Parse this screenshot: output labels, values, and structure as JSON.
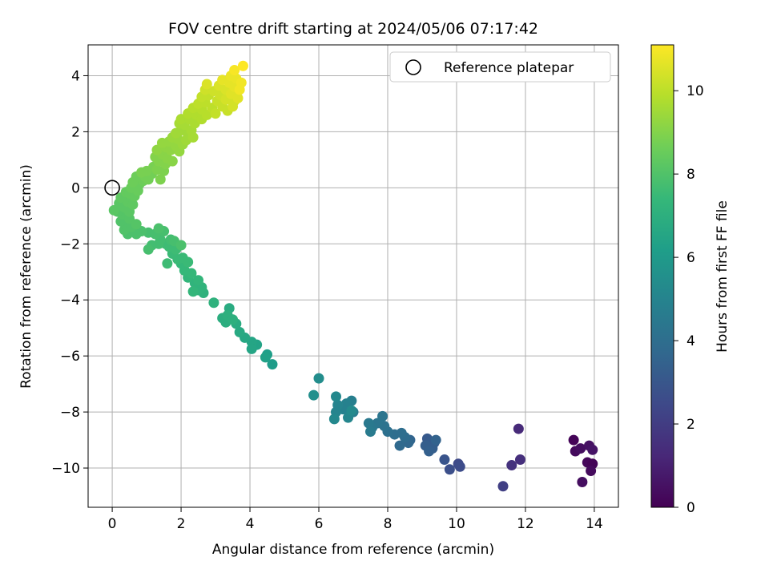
{
  "chart_data": {
    "type": "scatter",
    "title": "FOV centre drift starting at 2024/05/06 07:17:42",
    "xlabel": "Angular distance from reference (arcmin)",
    "ylabel": "Rotation from reference (arcmin)",
    "xlim": [
      -0.7,
      14.7
    ],
    "ylim": [
      -11.4,
      5.1
    ],
    "xticks": [
      0,
      2,
      4,
      6,
      8,
      10,
      12,
      14
    ],
    "yticks": [
      -10,
      -8,
      -6,
      -4,
      -2,
      0,
      2,
      4
    ],
    "xtick_labels": [
      "0",
      "2",
      "4",
      "6",
      "8",
      "10",
      "12",
      "14"
    ],
    "ytick_labels": [
      "−10",
      "−8",
      "−6",
      "−4",
      "−2",
      "0",
      "2",
      "4"
    ],
    "grid": true,
    "legend": {
      "placement": "upper right",
      "label": "Reference platepar",
      "marker": "open circle"
    },
    "reference_point": {
      "x": 0,
      "y": 0
    },
    "colorbar": {
      "label": "Hours from first FF file",
      "colormap": "viridis",
      "range": [
        0,
        11.1
      ],
      "ticks": [
        0,
        2,
        4,
        6,
        8,
        10
      ],
      "tick_labels": [
        "0",
        "2",
        "4",
        "6",
        "8",
        "10"
      ]
    },
    "colormap_stops": [
      "#440154",
      "#482878",
      "#3e4989",
      "#31688e",
      "#26828e",
      "#1f9e89",
      "#35b779",
      "#6ece58",
      "#b5de2b",
      "#fde725"
    ],
    "points": [
      {
        "x": 13.4,
        "y": -9.0,
        "t": 0.1
      },
      {
        "x": 13.45,
        "y": -9.4,
        "t": 0.3
      },
      {
        "x": 13.6,
        "y": -9.3,
        "t": 0.4
      },
      {
        "x": 13.85,
        "y": -9.2,
        "t": 0.5
      },
      {
        "x": 13.95,
        "y": -9.35,
        "t": 0.6
      },
      {
        "x": 13.8,
        "y": -9.8,
        "t": 0.2
      },
      {
        "x": 13.95,
        "y": -9.85,
        "t": 0.1
      },
      {
        "x": 13.9,
        "y": -10.1,
        "t": 0.3
      },
      {
        "x": 13.65,
        "y": -10.5,
        "t": 0.4
      },
      {
        "x": 11.8,
        "y": -8.6,
        "t": 1.3
      },
      {
        "x": 11.85,
        "y": -9.7,
        "t": 1.5
      },
      {
        "x": 11.6,
        "y": -9.9,
        "t": 1.6
      },
      {
        "x": 11.35,
        "y": -10.65,
        "t": 2.1
      },
      {
        "x": 10.05,
        "y": -9.85,
        "t": 2.5
      },
      {
        "x": 10.1,
        "y": -9.95,
        "t": 2.6
      },
      {
        "x": 9.8,
        "y": -10.05,
        "t": 2.7
      },
      {
        "x": 9.65,
        "y": -9.7,
        "t": 2.9
      },
      {
        "x": 9.15,
        "y": -8.95,
        "t": 3.1
      },
      {
        "x": 9.25,
        "y": -9.05,
        "t": 3.2
      },
      {
        "x": 9.35,
        "y": -9.1,
        "t": 3.2
      },
      {
        "x": 9.1,
        "y": -9.2,
        "t": 3.3
      },
      {
        "x": 9.3,
        "y": -9.3,
        "t": 3.3
      },
      {
        "x": 9.2,
        "y": -9.4,
        "t": 3.4
      },
      {
        "x": 9.4,
        "y": -9.0,
        "t": 3.5
      },
      {
        "x": 8.65,
        "y": -9.0,
        "t": 3.6
      },
      {
        "x": 8.6,
        "y": -9.1,
        "t": 3.7
      },
      {
        "x": 8.35,
        "y": -9.2,
        "t": 3.8
      },
      {
        "x": 8.5,
        "y": -8.9,
        "t": 3.9
      },
      {
        "x": 8.4,
        "y": -8.75,
        "t": 4.0
      },
      {
        "x": 8.2,
        "y": -8.8,
        "t": 4.0
      },
      {
        "x": 8.0,
        "y": -8.7,
        "t": 4.1
      },
      {
        "x": 7.9,
        "y": -8.5,
        "t": 4.2
      },
      {
        "x": 7.85,
        "y": -8.15,
        "t": 4.3
      },
      {
        "x": 7.7,
        "y": -8.4,
        "t": 4.3
      },
      {
        "x": 7.55,
        "y": -8.55,
        "t": 4.4
      },
      {
        "x": 7.45,
        "y": -8.4,
        "t": 4.5
      },
      {
        "x": 7.5,
        "y": -8.7,
        "t": 4.6
      },
      {
        "x": 7.0,
        "y": -8.0,
        "t": 4.7
      },
      {
        "x": 6.95,
        "y": -7.6,
        "t": 4.8
      },
      {
        "x": 6.8,
        "y": -7.7,
        "t": 4.9
      },
      {
        "x": 6.7,
        "y": -7.9,
        "t": 4.9
      },
      {
        "x": 6.55,
        "y": -7.75,
        "t": 5.0
      },
      {
        "x": 6.5,
        "y": -8.0,
        "t": 5.0
      },
      {
        "x": 6.85,
        "y": -8.2,
        "t": 5.1
      },
      {
        "x": 6.5,
        "y": -7.45,
        "t": 5.2
      },
      {
        "x": 6.45,
        "y": -8.25,
        "t": 5.2
      },
      {
        "x": 6.95,
        "y": -7.95,
        "t": 5.3
      },
      {
        "x": 6.0,
        "y": -6.8,
        "t": 5.4
      },
      {
        "x": 5.85,
        "y": -7.4,
        "t": 5.5
      },
      {
        "x": 4.65,
        "y": -6.3,
        "t": 6.1
      },
      {
        "x": 4.5,
        "y": -5.95,
        "t": 6.2
      },
      {
        "x": 4.45,
        "y": -6.05,
        "t": 6.3
      },
      {
        "x": 4.2,
        "y": -5.6,
        "t": 6.4
      },
      {
        "x": 4.05,
        "y": -5.5,
        "t": 6.5
      },
      {
        "x": 4.05,
        "y": -5.75,
        "t": 6.5
      },
      {
        "x": 3.85,
        "y": -5.35,
        "t": 6.6
      },
      {
        "x": 3.7,
        "y": -5.15,
        "t": 6.7
      },
      {
        "x": 3.6,
        "y": -4.85,
        "t": 6.8
      },
      {
        "x": 3.4,
        "y": -4.3,
        "t": 6.8
      },
      {
        "x": 3.3,
        "y": -4.8,
        "t": 6.9
      },
      {
        "x": 3.2,
        "y": -4.65,
        "t": 6.9
      },
      {
        "x": 3.35,
        "y": -4.55,
        "t": 7.0
      },
      {
        "x": 3.5,
        "y": -4.7,
        "t": 7.0
      },
      {
        "x": 2.95,
        "y": -4.1,
        "t": 7.1
      },
      {
        "x": 2.65,
        "y": -3.75,
        "t": 7.1
      },
      {
        "x": 2.5,
        "y": -3.65,
        "t": 7.2
      },
      {
        "x": 2.6,
        "y": -3.55,
        "t": 7.2
      },
      {
        "x": 2.4,
        "y": -3.4,
        "t": 7.2
      },
      {
        "x": 2.35,
        "y": -3.7,
        "t": 7.3
      },
      {
        "x": 2.5,
        "y": -3.3,
        "t": 7.3
      },
      {
        "x": 2.2,
        "y": -3.2,
        "t": 7.3
      },
      {
        "x": 2.3,
        "y": -3.05,
        "t": 7.4
      },
      {
        "x": 2.1,
        "y": -2.95,
        "t": 7.4
      },
      {
        "x": 2.0,
        "y": -2.7,
        "t": 7.4
      },
      {
        "x": 2.2,
        "y": -2.65,
        "t": 7.5
      },
      {
        "x": 2.05,
        "y": -2.5,
        "t": 7.5
      },
      {
        "x": 1.9,
        "y": -2.55,
        "t": 7.5
      },
      {
        "x": 1.75,
        "y": -2.35,
        "t": 7.5
      },
      {
        "x": 1.6,
        "y": -2.7,
        "t": 7.6
      },
      {
        "x": 1.85,
        "y": -2.2,
        "t": 7.6
      },
      {
        "x": 1.65,
        "y": -2.1,
        "t": 7.6
      },
      {
        "x": 1.55,
        "y": -2.0,
        "t": 7.6
      },
      {
        "x": 1.4,
        "y": -1.85,
        "t": 7.7
      },
      {
        "x": 1.7,
        "y": -1.85,
        "t": 7.7
      },
      {
        "x": 1.35,
        "y": -2.0,
        "t": 7.7
      },
      {
        "x": 1.15,
        "y": -2.05,
        "t": 7.7
      },
      {
        "x": 1.05,
        "y": -2.2,
        "t": 7.8
      },
      {
        "x": 1.05,
        "y": -1.6,
        "t": 7.8
      },
      {
        "x": 1.25,
        "y": -1.65,
        "t": 7.8
      },
      {
        "x": 1.5,
        "y": -1.55,
        "t": 7.8
      },
      {
        "x": 1.8,
        "y": -1.9,
        "t": 7.8
      },
      {
        "x": 2.0,
        "y": -2.05,
        "t": 7.9
      },
      {
        "x": 1.35,
        "y": -1.45,
        "t": 7.9
      },
      {
        "x": 0.85,
        "y": -1.55,
        "t": 7.9
      },
      {
        "x": 0.7,
        "y": -1.65,
        "t": 7.9
      },
      {
        "x": 0.45,
        "y": -1.65,
        "t": 7.9
      },
      {
        "x": 0.35,
        "y": -1.5,
        "t": 8.0
      },
      {
        "x": 0.4,
        "y": -1.35,
        "t": 8.0
      },
      {
        "x": 0.25,
        "y": -1.2,
        "t": 8.0
      },
      {
        "x": 0.55,
        "y": -1.4,
        "t": 8.0
      },
      {
        "x": 0.3,
        "y": -0.95,
        "t": 8.1
      },
      {
        "x": 0.5,
        "y": -1.1,
        "t": 8.1
      },
      {
        "x": 0.7,
        "y": -1.3,
        "t": 8.1
      },
      {
        "x": 0.15,
        "y": -0.85,
        "t": 8.1
      },
      {
        "x": 0.05,
        "y": -0.8,
        "t": 8.2
      },
      {
        "x": 0.35,
        "y": -0.7,
        "t": 8.2
      },
      {
        "x": 0.2,
        "y": -0.55,
        "t": 8.2
      },
      {
        "x": 0.5,
        "y": -0.85,
        "t": 8.2
      },
      {
        "x": 0.45,
        "y": -0.5,
        "t": 8.3
      },
      {
        "x": 0.25,
        "y": -0.35,
        "t": 8.3
      },
      {
        "x": 0.6,
        "y": -0.6,
        "t": 8.3
      },
      {
        "x": 0.4,
        "y": -0.15,
        "t": 8.4
      },
      {
        "x": 0.5,
        "y": -0.2,
        "t": 8.4
      },
      {
        "x": 0.65,
        "y": -0.3,
        "t": 8.4
      },
      {
        "x": 0.55,
        "y": 0.0,
        "t": 8.5
      },
      {
        "x": 0.75,
        "y": -0.1,
        "t": 8.5
      },
      {
        "x": 0.8,
        "y": 0.15,
        "t": 8.5
      },
      {
        "x": 0.6,
        "y": 0.2,
        "t": 8.6
      },
      {
        "x": 0.9,
        "y": 0.25,
        "t": 8.6
      },
      {
        "x": 0.7,
        "y": 0.4,
        "t": 8.6
      },
      {
        "x": 0.95,
        "y": 0.4,
        "t": 8.7
      },
      {
        "x": 1.05,
        "y": 0.3,
        "t": 8.7
      },
      {
        "x": 1.15,
        "y": 0.5,
        "t": 8.7
      },
      {
        "x": 1.0,
        "y": 0.6,
        "t": 8.8
      },
      {
        "x": 0.85,
        "y": 0.55,
        "t": 8.8
      },
      {
        "x": 1.2,
        "y": 0.75,
        "t": 8.8
      },
      {
        "x": 1.3,
        "y": 0.65,
        "t": 8.9
      },
      {
        "x": 1.4,
        "y": 0.3,
        "t": 8.9
      },
      {
        "x": 1.5,
        "y": 0.6,
        "t": 8.9
      },
      {
        "x": 1.35,
        "y": 0.95,
        "t": 9.0
      },
      {
        "x": 1.55,
        "y": 0.85,
        "t": 9.0
      },
      {
        "x": 1.25,
        "y": 1.1,
        "t": 9.0
      },
      {
        "x": 1.45,
        "y": 1.2,
        "t": 9.1
      },
      {
        "x": 1.6,
        "y": 1.05,
        "t": 9.1
      },
      {
        "x": 1.75,
        "y": 0.95,
        "t": 9.1
      },
      {
        "x": 1.3,
        "y": 1.35,
        "t": 9.2
      },
      {
        "x": 1.55,
        "y": 1.45,
        "t": 9.2
      },
      {
        "x": 1.7,
        "y": 1.35,
        "t": 9.2
      },
      {
        "x": 1.45,
        "y": 1.6,
        "t": 9.3
      },
      {
        "x": 1.65,
        "y": 1.65,
        "t": 9.3
      },
      {
        "x": 1.85,
        "y": 1.5,
        "t": 9.3
      },
      {
        "x": 1.95,
        "y": 1.3,
        "t": 9.3
      },
      {
        "x": 1.75,
        "y": 1.8,
        "t": 9.4
      },
      {
        "x": 1.9,
        "y": 1.75,
        "t": 9.4
      },
      {
        "x": 2.05,
        "y": 1.55,
        "t": 9.4
      },
      {
        "x": 2.15,
        "y": 1.7,
        "t": 9.5
      },
      {
        "x": 1.85,
        "y": 1.95,
        "t": 9.5
      },
      {
        "x": 2.0,
        "y": 2.05,
        "t": 9.5
      },
      {
        "x": 2.2,
        "y": 1.9,
        "t": 9.5
      },
      {
        "x": 1.95,
        "y": 2.3,
        "t": 9.6
      },
      {
        "x": 2.1,
        "y": 2.25,
        "t": 9.6
      },
      {
        "x": 2.3,
        "y": 2.05,
        "t": 9.6
      },
      {
        "x": 2.35,
        "y": 1.8,
        "t": 9.6
      },
      {
        "x": 2.0,
        "y": 2.45,
        "t": 9.7
      },
      {
        "x": 2.25,
        "y": 2.45,
        "t": 9.7
      },
      {
        "x": 2.4,
        "y": 2.3,
        "t": 9.7
      },
      {
        "x": 2.2,
        "y": 2.65,
        "t": 9.8
      },
      {
        "x": 2.45,
        "y": 2.6,
        "t": 9.8
      },
      {
        "x": 2.6,
        "y": 2.45,
        "t": 9.8
      },
      {
        "x": 2.35,
        "y": 2.85,
        "t": 9.9
      },
      {
        "x": 2.6,
        "y": 2.8,
        "t": 9.9
      },
      {
        "x": 2.75,
        "y": 2.6,
        "t": 9.9
      },
      {
        "x": 2.5,
        "y": 3.0,
        "t": 10.0
      },
      {
        "x": 2.7,
        "y": 3.05,
        "t": 10.0
      },
      {
        "x": 2.9,
        "y": 2.85,
        "t": 10.0
      },
      {
        "x": 3.0,
        "y": 2.65,
        "t": 10.1
      },
      {
        "x": 2.6,
        "y": 3.25,
        "t": 10.1
      },
      {
        "x": 2.8,
        "y": 3.3,
        "t": 10.1
      },
      {
        "x": 3.05,
        "y": 3.1,
        "t": 10.2
      },
      {
        "x": 3.2,
        "y": 2.9,
        "t": 10.2
      },
      {
        "x": 3.35,
        "y": 2.75,
        "t": 10.2
      },
      {
        "x": 2.7,
        "y": 3.5,
        "t": 10.3
      },
      {
        "x": 2.95,
        "y": 3.45,
        "t": 10.3
      },
      {
        "x": 3.15,
        "y": 3.3,
        "t": 10.3
      },
      {
        "x": 3.3,
        "y": 3.15,
        "t": 10.4
      },
      {
        "x": 3.5,
        "y": 2.9,
        "t": 10.4
      },
      {
        "x": 3.55,
        "y": 3.1,
        "t": 10.4
      },
      {
        "x": 2.75,
        "y": 3.7,
        "t": 10.5
      },
      {
        "x": 3.1,
        "y": 3.65,
        "t": 10.5
      },
      {
        "x": 3.3,
        "y": 3.5,
        "t": 10.5
      },
      {
        "x": 3.45,
        "y": 3.35,
        "t": 10.6
      },
      {
        "x": 3.65,
        "y": 3.2,
        "t": 10.6
      },
      {
        "x": 3.2,
        "y": 3.85,
        "t": 10.7
      },
      {
        "x": 3.4,
        "y": 3.75,
        "t": 10.7
      },
      {
        "x": 3.55,
        "y": 3.6,
        "t": 10.7
      },
      {
        "x": 3.45,
        "y": 4.0,
        "t": 10.8
      },
      {
        "x": 3.6,
        "y": 3.9,
        "t": 10.8
      },
      {
        "x": 3.75,
        "y": 3.75,
        "t": 10.9
      },
      {
        "x": 3.7,
        "y": 3.5,
        "t": 10.9
      },
      {
        "x": 3.55,
        "y": 4.2,
        "t": 11.0
      },
      {
        "x": 3.8,
        "y": 4.35,
        "t": 11.1
      }
    ]
  }
}
